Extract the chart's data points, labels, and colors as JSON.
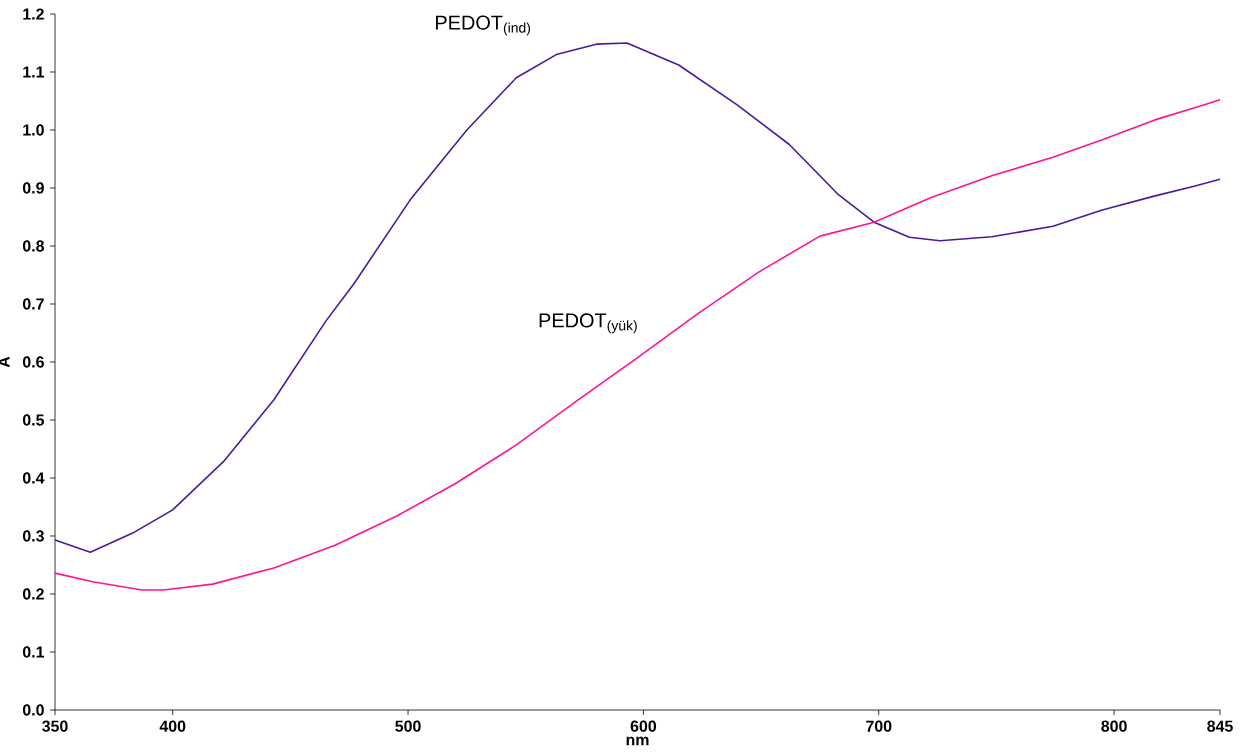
{
  "chart_data": {
    "type": "line",
    "xlabel": "nm",
    "ylabel": "A",
    "xlim": [
      350,
      845
    ],
    "xticks": [
      350,
      400,
      500,
      600,
      700,
      800,
      845
    ],
    "ylim": [
      0,
      1.2
    ],
    "yticks": [
      {
        "value": 0,
        "label": "0.0"
      },
      {
        "value": 0.1,
        "label": "0.1"
      },
      {
        "value": 0.2,
        "label": "0.2"
      },
      {
        "value": 0.3,
        "label": "0.3"
      },
      {
        "value": 0.4,
        "label": "0.4"
      },
      {
        "value": 0.5,
        "label": "0.5"
      },
      {
        "value": 0.6,
        "label": "0.6"
      },
      {
        "value": 0.7,
        "label": "0.7"
      },
      {
        "value": 0.8,
        "label": "0.8"
      },
      {
        "value": 0.9,
        "label": "0.9"
      },
      {
        "value": 1.0,
        "label": "1.0"
      },
      {
        "value": 1.1,
        "label": "1.1"
      },
      {
        "value": 1.2,
        "label": "1.2"
      }
    ],
    "series": [
      {
        "name": "PEDOT$_{(ind)}$",
        "color": "#4a1a9a",
        "x": [
          350,
          365,
          383,
          400,
          422,
          443,
          465,
          477,
          501,
          525,
          546,
          563,
          580,
          593,
          615,
          640,
          662,
          683,
          698,
          713,
          726,
          748,
          774,
          795,
          817,
          834,
          845
        ],
        "values": [
          0.293,
          0.272,
          0.305,
          0.345,
          0.43,
          0.535,
          0.67,
          0.735,
          0.88,
          1.0,
          1.09,
          1.13,
          1.148,
          1.15,
          1.112,
          1.043,
          0.975,
          0.888,
          0.841,
          0.815,
          0.809,
          0.816,
          0.834,
          0.862,
          0.886,
          0.903,
          0.915
        ]
      },
      {
        "name": "PEDOT$_{(yük)}$",
        "color": "#ff1493",
        "x": [
          350,
          366,
          387,
          396,
          417,
          443,
          469,
          495,
          520,
          546,
          572,
          598,
          623,
          649,
          675,
          698,
          722,
          748,
          774,
          795,
          817,
          838,
          845
        ],
        "values": [
          0.236,
          0.221,
          0.207,
          0.207,
          0.217,
          0.245,
          0.284,
          0.334,
          0.39,
          0.457,
          0.534,
          0.609,
          0.683,
          0.755,
          0.817,
          0.841,
          0.883,
          0.921,
          0.953,
          0.983,
          1.017,
          1.043,
          1.052
        ]
      }
    ]
  }
}
